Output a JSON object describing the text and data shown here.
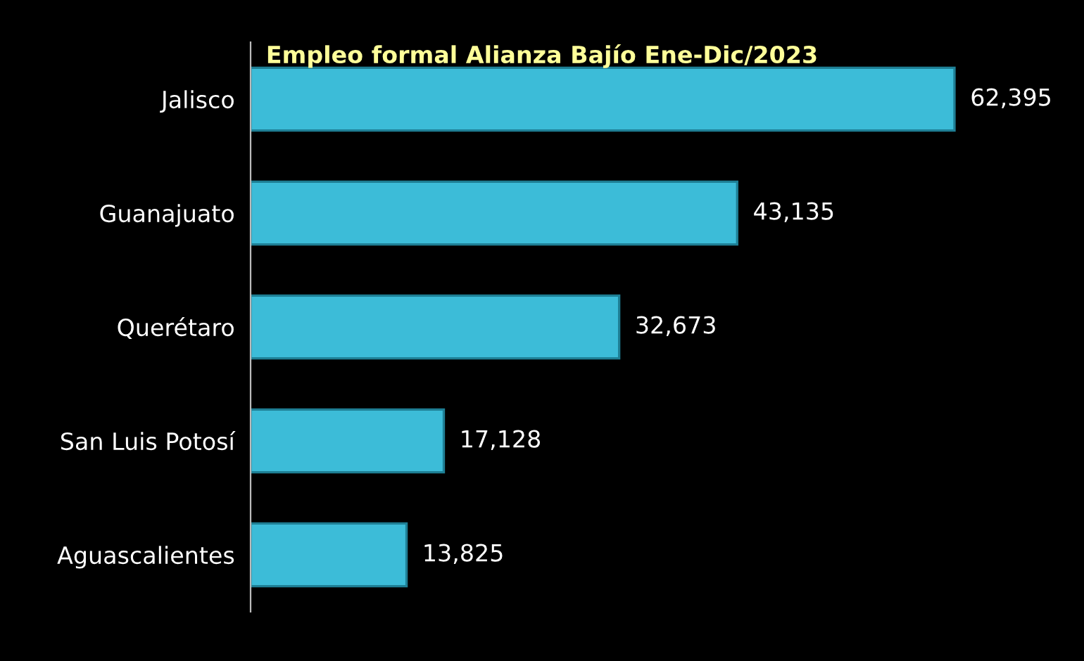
{
  "chart_data": {
    "type": "bar",
    "orientation": "horizontal",
    "title": "Empleo formal Alianza Bajío Ene-Dic/2023",
    "categories": [
      "Jalisco",
      "Guanajuato",
      "Querétaro",
      "San Luis Potosí",
      "Aguascalientes"
    ],
    "values": [
      62395,
      43135,
      32673,
      17128,
      13825
    ],
    "value_labels": [
      "62,395",
      "43,135",
      "32,673",
      "17,128",
      "13,825"
    ],
    "color": "#3cbcd8",
    "grid": false,
    "legend": false,
    "tick_labels": "y"
  }
}
